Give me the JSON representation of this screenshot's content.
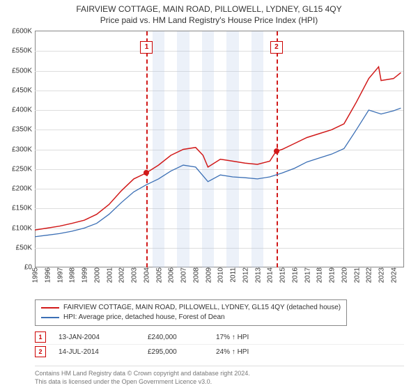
{
  "title_line1": "FAIRVIEW COTTAGE, MAIN ROAD, PILLOWELL, LYDNEY, GL15 4QY",
  "title_line2": "Price paid vs. HM Land Registry's House Price Index (HPI)",
  "chart": {
    "type": "line",
    "x_years": [
      1995,
      1996,
      1997,
      1998,
      1999,
      2000,
      2001,
      2002,
      2003,
      2004,
      2005,
      2006,
      2007,
      2008,
      2009,
      2010,
      2011,
      2012,
      2013,
      2014,
      2015,
      2016,
      2017,
      2018,
      2019,
      2020,
      2021,
      2022,
      2023,
      2024
    ],
    "xlim": [
      1995,
      2024.8
    ],
    "ylim": [
      0,
      600
    ],
    "y_ticks": [
      0,
      50,
      100,
      150,
      200,
      250,
      300,
      350,
      400,
      450,
      500,
      550,
      600
    ],
    "y_tick_labels": [
      "£0",
      "£50K",
      "£100K",
      "£150K",
      "£200K",
      "£250K",
      "£300K",
      "£350K",
      "£400K",
      "£450K",
      "£500K",
      "£550K",
      "£600K"
    ],
    "grid_color": "#dddddd",
    "background_color": "#ffffff",
    "axis_label_fontsize": 10,
    "highlight_bands_color": "rgba(180,200,230,0.25)",
    "highlight_bands": [
      [
        2004.5,
        2005.5
      ],
      [
        2006.5,
        2007.5
      ],
      [
        2008.5,
        2009.5
      ],
      [
        2010.5,
        2011.5
      ],
      [
        2012.5,
        2013.5
      ]
    ],
    "series": [
      {
        "id": "property",
        "label": "FAIRVIEW COTTAGE, MAIN ROAD, PILLOWELL, LYDNEY, GL15 4QY (detached house)",
        "color": "#d11919",
        "line_width": 1.5,
        "x": [
          1995,
          1996,
          1997,
          1998,
          1999,
          2000,
          2001,
          2002,
          2003,
          2004,
          2005,
          2006,
          2007,
          2008,
          2008.6,
          2009,
          2010,
          2011,
          2012,
          2013,
          2014,
          2014.5,
          2015,
          2016,
          2017,
          2018,
          2019,
          2020,
          2021,
          2022,
          2022.8,
          2023,
          2024,
          2024.6
        ],
        "y": [
          95,
          100,
          105,
          112,
          120,
          135,
          160,
          195,
          225,
          240,
          260,
          285,
          300,
          305,
          285,
          255,
          275,
          270,
          265,
          262,
          270,
          295,
          300,
          315,
          330,
          340,
          350,
          365,
          420,
          480,
          510,
          475,
          480,
          495
        ]
      },
      {
        "id": "hpi",
        "label": "HPI: Average price, detached house, Forest of Dean",
        "color": "#3b6fb5",
        "line_width": 1.3,
        "x": [
          1995,
          1996,
          1997,
          1998,
          1999,
          2000,
          2001,
          2002,
          2003,
          2004,
          2005,
          2006,
          2007,
          2008,
          2009,
          2010,
          2011,
          2012,
          2013,
          2014,
          2015,
          2016,
          2017,
          2018,
          2019,
          2020,
          2021,
          2022,
          2023,
          2024,
          2024.6
        ],
        "y": [
          78,
          82,
          86,
          92,
          100,
          112,
          135,
          165,
          192,
          210,
          225,
          245,
          260,
          255,
          218,
          235,
          230,
          228,
          225,
          230,
          240,
          252,
          268,
          278,
          288,
          302,
          350,
          400,
          390,
          398,
          405
        ]
      }
    ],
    "transactions": [
      {
        "n": "1",
        "date_str": "13-JAN-2004",
        "x": 2004.04,
        "price": 240,
        "price_str": "£240,000",
        "diff": "17% ↑ HPI"
      },
      {
        "n": "2",
        "date_str": "14-JUL-2014",
        "x": 2014.54,
        "price": 295,
        "price_str": "£295,000",
        "diff": "24% ↑ HPI"
      }
    ],
    "vline_color": "#d11919",
    "marker_color": "#d11919",
    "marker_radius": 4
  },
  "legend_title_property": "FAIRVIEW COTTAGE, MAIN ROAD, PILLOWELL, LYDNEY, GL15 4QY (detached house)",
  "legend_title_hpi": "HPI: Average price, detached house, Forest of Dean",
  "footnote_line1": "Contains HM Land Registry data © Crown copyright and database right 2024.",
  "footnote_line2": "This data is licensed under the Open Government Licence v3.0."
}
